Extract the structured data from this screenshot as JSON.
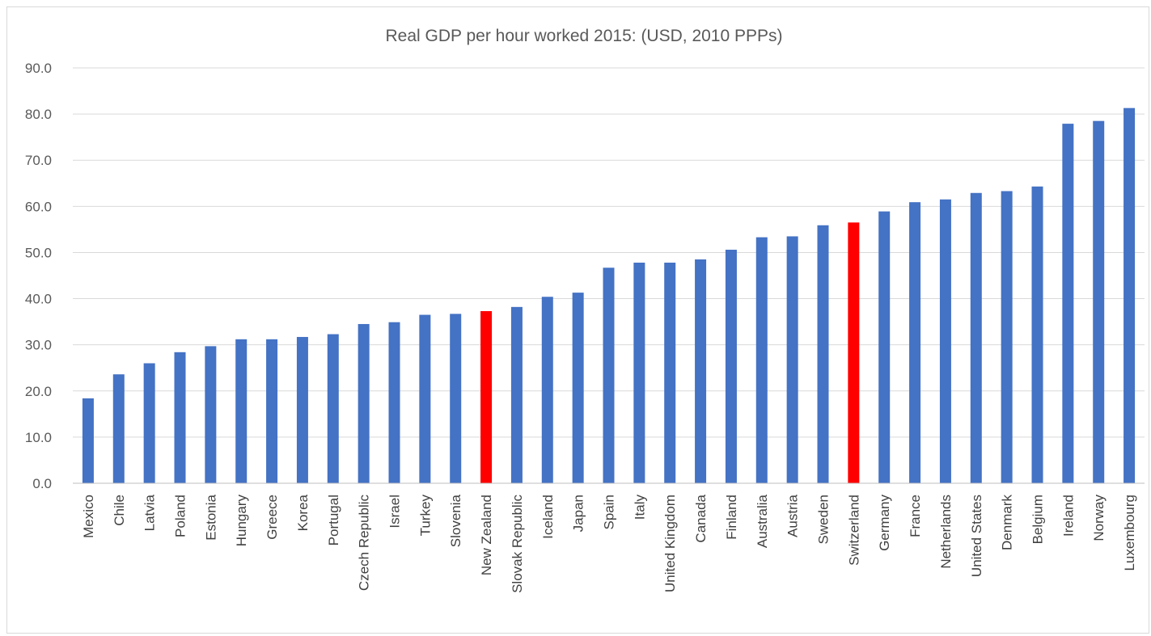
{
  "chart_data": {
    "type": "bar",
    "title": "Real GDP per hour worked 2015:  (USD, 2010 PPPs)",
    "xlabel": "",
    "ylabel": "",
    "ylim": [
      0,
      90
    ],
    "yticks": [
      "0.0",
      "10.0",
      "20.0",
      "30.0",
      "40.0",
      "50.0",
      "60.0",
      "70.0",
      "80.0",
      "90.0"
    ],
    "grid": true,
    "legend": "none",
    "categories": [
      "Mexico",
      "Chile",
      "Latvia",
      "Poland",
      "Estonia",
      "Hungary",
      "Greece",
      "Korea",
      "Portugal",
      "Czech Republic",
      "Israel",
      "Turkey",
      "Slovenia",
      "New Zealand",
      "Slovak Republic",
      "Iceland",
      "Japan",
      "Spain",
      "Italy",
      "United Kingdom",
      "Canada",
      "Finland",
      "Australia",
      "Austria",
      "Sweden",
      "Switzerland",
      "Germany",
      "France",
      "Netherlands",
      "United States",
      "Denmark",
      "Belgium",
      "Ireland",
      "Norway",
      "Luxembourg"
    ],
    "values": [
      18.4,
      23.6,
      26.0,
      28.4,
      29.7,
      31.2,
      31.2,
      31.7,
      32.3,
      34.5,
      34.9,
      36.5,
      36.7,
      37.3,
      38.2,
      40.4,
      41.3,
      46.7,
      47.8,
      47.8,
      48.5,
      50.6,
      53.3,
      53.5,
      55.9,
      56.5,
      58.9,
      60.9,
      61.5,
      62.9,
      63.3,
      64.3,
      77.9,
      78.5,
      81.3
    ],
    "colors": {
      "default": "#4472c4",
      "highlight": "#ff0000"
    },
    "highlighted": [
      "New Zealand",
      "Switzerland"
    ]
  }
}
